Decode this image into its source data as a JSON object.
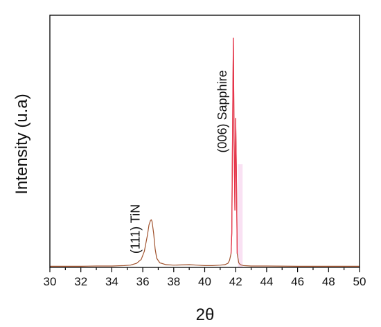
{
  "chart_data": {
    "type": "line",
    "xlabel": "2θ",
    "ylabel": "Intensity (u.a)",
    "xlim": [
      30,
      50
    ],
    "ylim": [
      0,
      1.1
    ],
    "xticks": [
      30,
      32,
      34,
      36,
      38,
      40,
      42,
      44,
      46,
      48,
      50
    ],
    "yticks_labeled": false,
    "grid": false,
    "legend": "none",
    "colors": {
      "trace": "#a0522d",
      "sapphire_trace": "#e8324a",
      "shade": "#f7d9f0",
      "axis": "#000000"
    },
    "annotations": [
      {
        "text": "(111) TiN",
        "x": 35.8,
        "y": 0.06,
        "rotation": -90
      },
      {
        "text": "(006) Sapphire",
        "x": 41.4,
        "y": 0.5,
        "rotation": -90
      }
    ],
    "series": [
      {
        "x": [
          30,
          31,
          32,
          33,
          34,
          34.8,
          35.2,
          35.6,
          35.9,
          36.1,
          36.3,
          36.4,
          36.5,
          36.55,
          36.6,
          36.7,
          36.8,
          36.9,
          37.1,
          37.5,
          38,
          39,
          39.5,
          40,
          40.5,
          41,
          41.3,
          41.5,
          41.6,
          41.7,
          41.75,
          41.8,
          41.85,
          41.9,
          41.95,
          42.0,
          42.05,
          42.1,
          42.2,
          42.3,
          42.5,
          43,
          44,
          46,
          48,
          50
        ],
        "y": [
          0.005,
          0.005,
          0.005,
          0.006,
          0.006,
          0.008,
          0.01,
          0.018,
          0.035,
          0.07,
          0.14,
          0.185,
          0.205,
          0.208,
          0.2,
          0.15,
          0.08,
          0.04,
          0.02,
          0.012,
          0.01,
          0.012,
          0.01,
          0.008,
          0.008,
          0.01,
          0.012,
          0.018,
          0.03,
          0.06,
          0.15,
          0.6,
          1.0,
          0.55,
          0.25,
          0.65,
          0.4,
          0.06,
          0.02,
          0.012,
          0.008,
          0.006,
          0.006,
          0.005,
          0.005,
          0.005
        ]
      }
    ]
  }
}
